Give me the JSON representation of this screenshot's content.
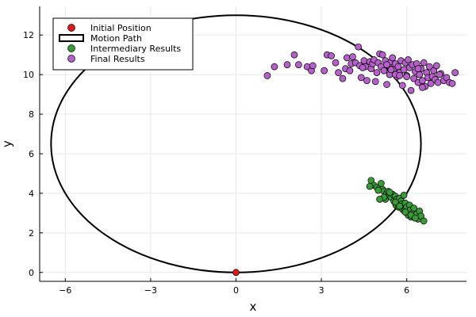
{
  "chart_data": {
    "type": "scatter",
    "title": "",
    "xlabel": "x",
    "ylabel": "y",
    "xlim": [
      -6.9,
      8.1
    ],
    "ylim": [
      -0.45,
      13.45
    ],
    "x_ticks": [
      {
        "value": -6,
        "label": "−6"
      },
      {
        "value": -3,
        "label": "−3"
      },
      {
        "value": 0,
        "label": "0"
      },
      {
        "value": 3,
        "label": "3"
      },
      {
        "value": 6,
        "label": "6"
      }
    ],
    "y_ticks": [
      {
        "value": 0,
        "label": "0"
      },
      {
        "value": 2,
        "label": "2"
      },
      {
        "value": 4,
        "label": "4"
      },
      {
        "value": 6,
        "label": "6"
      },
      {
        "value": 8,
        "label": "8"
      },
      {
        "value": 10,
        "label": "10"
      },
      {
        "value": 12,
        "label": "12"
      }
    ],
    "grid": true,
    "legend_position": "top-left",
    "series": [
      {
        "name": "Initial Position",
        "kind": "point",
        "color": "#e01b1b",
        "x": [
          0
        ],
        "y": [
          0
        ]
      },
      {
        "name": "Motion Path",
        "kind": "ellipse",
        "color": "#000000",
        "center": [
          0,
          6.5
        ],
        "radius_x": 6.5,
        "radius_y": 6.5
      },
      {
        "name": "Intermediary Results",
        "kind": "point",
        "color": "#3a9a3a",
        "x": [
          4.75,
          4.85,
          4.95,
          5.05,
          5.1,
          5.15,
          5.2,
          5.25,
          5.3,
          5.35,
          5.4,
          5.45,
          5.5,
          5.55,
          5.6,
          5.62,
          5.65,
          5.7,
          5.72,
          5.75,
          5.8,
          5.82,
          5.85,
          5.9,
          5.92,
          5.95,
          6.0,
          6.02,
          6.05,
          6.1,
          6.12,
          6.15,
          6.2,
          6.25,
          6.3,
          6.35,
          6.4,
          6.45,
          6.5,
          6.6,
          4.7,
          5.0,
          5.2,
          5.4,
          5.6,
          5.75,
          5.95,
          6.15,
          6.3,
          5.05
        ],
        "y": [
          4.65,
          4.4,
          4.3,
          4.25,
          4.5,
          4.2,
          4.1,
          3.7,
          4.0,
          4.1,
          3.9,
          3.8,
          3.95,
          3.6,
          3.85,
          3.4,
          3.7,
          3.5,
          3.3,
          3.75,
          3.6,
          3.45,
          3.2,
          3.9,
          3.1,
          3.5,
          3.3,
          3.0,
          2.9,
          3.4,
          3.15,
          2.8,
          3.0,
          3.25,
          2.75,
          2.95,
          2.7,
          3.1,
          2.85,
          2.6,
          4.35,
          4.15,
          3.8,
          4.05,
          3.55,
          3.35,
          3.05,
          2.9,
          2.75,
          3.7
        ]
      },
      {
        "name": "Final Results",
        "kind": "point",
        "color": "#b561c9",
        "x": [
          1.1,
          1.35,
          1.8,
          2.05,
          2.2,
          2.5,
          2.65,
          2.7,
          3.1,
          3.2,
          3.35,
          3.5,
          3.6,
          3.75,
          3.85,
          3.9,
          4.0,
          4.05,
          4.1,
          4.2,
          4.3,
          4.35,
          4.4,
          4.5,
          4.55,
          4.6,
          4.7,
          4.75,
          4.8,
          4.85,
          4.95,
          5.0,
          5.05,
          5.1,
          5.15,
          5.2,
          5.25,
          5.3,
          5.35,
          5.4,
          5.45,
          5.5,
          5.55,
          5.6,
          5.65,
          5.7,
          5.75,
          5.8,
          5.85,
          5.9,
          5.95,
          6.0,
          6.05,
          6.1,
          6.15,
          6.2,
          6.25,
          6.3,
          6.35,
          6.4,
          6.45,
          6.5,
          6.55,
          6.6,
          6.65,
          6.7,
          6.75,
          6.8,
          6.85,
          6.9,
          6.95,
          7.0,
          7.05,
          7.1,
          7.2,
          7.3,
          7.4,
          7.5,
          7.6,
          7.7,
          5.3,
          5.6,
          6.0,
          6.4,
          4.45,
          4.9,
          5.75,
          6.55,
          7.15,
          5.45
        ],
        "y": [
          9.95,
          10.4,
          10.5,
          11.0,
          10.5,
          10.4,
          10.2,
          10.45,
          10.2,
          11.0,
          10.95,
          10.6,
          10.1,
          9.8,
          10.3,
          10.85,
          10.2,
          10.55,
          10.9,
          10.6,
          11.4,
          10.45,
          9.85,
          10.7,
          10.4,
          9.7,
          10.65,
          10.3,
          10.55,
          10.75,
          10.1,
          10.6,
          11.05,
          10.4,
          11.0,
          10.2,
          10.7,
          9.5,
          10.45,
          10.0,
          10.65,
          10.85,
          10.3,
          10.55,
          9.9,
          10.4,
          10.1,
          10.7,
          9.45,
          10.25,
          10.6,
          9.95,
          10.75,
          10.35,
          9.2,
          10.5,
          9.8,
          10.15,
          10.55,
          9.6,
          10.0,
          10.3,
          9.7,
          10.6,
          9.4,
          10.1,
          9.85,
          10.4,
          9.55,
          9.9,
          10.2,
          9.75,
          10.45,
          9.6,
          10.05,
          9.7,
          9.85,
          9.6,
          9.55,
          10.1,
          10.5,
          10.0,
          9.9,
          10.3,
          10.35,
          9.65,
          9.95,
          9.35,
          10.0,
          10.25
        ]
      }
    ]
  }
}
